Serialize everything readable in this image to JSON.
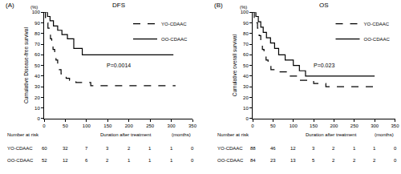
{
  "chart_data": [
    {
      "type": "line",
      "panel_label": "(A)",
      "title": "DFS",
      "ylabel": "Cumulative Disease-free survival",
      "y_unit": "(%)",
      "xlim": [
        0,
        350
      ],
      "xticks": [
        0,
        50,
        100,
        150,
        200,
        250,
        300,
        350
      ],
      "ylim": [
        0,
        100
      ],
      "yticks": [
        0,
        10,
        20,
        30,
        40,
        50,
        60,
        70,
        80,
        90,
        100
      ],
      "grid": false,
      "legend": "upper right",
      "annotation": "P=0.0014",
      "series": [
        {
          "name": "YO-CDAAC",
          "color": "#000000",
          "line_style": "dashed",
          "x": [
            0,
            3,
            6,
            9,
            12,
            15,
            18,
            21,
            25,
            28,
            32,
            36,
            40,
            45,
            52,
            60,
            75,
            110,
            310
          ],
          "values": [
            100,
            95,
            90,
            85,
            80,
            75,
            70,
            65,
            60,
            55,
            50,
            46,
            42,
            40,
            38,
            36,
            34,
            31,
            31
          ]
        },
        {
          "name": "OO-CDAAC",
          "color": "#000000",
          "line_style": "solid",
          "x": [
            0,
            8,
            14,
            22,
            32,
            42,
            55,
            70,
            90,
            305
          ],
          "values": [
            100,
            96,
            92,
            87,
            83,
            79,
            75,
            66,
            60,
            60
          ]
        }
      ],
      "risk_table": {
        "title": "Number at risk",
        "xlabel": "Duration after treatment",
        "x_unit": "(months)",
        "x": [
          0,
          50,
          100,
          150,
          200,
          250,
          300,
          350
        ],
        "rows": [
          {
            "name": "YO-CDAAC",
            "values": [
              60,
              32,
              7,
              3,
              2,
              1,
              1,
              0
            ]
          },
          {
            "name": "OO-CDAAC",
            "values": [
              52,
              12,
              6,
              2,
              1,
              1,
              1,
              0
            ]
          }
        ]
      }
    },
    {
      "type": "line",
      "panel_label": "(B)",
      "title": "OS",
      "ylabel": "Cumulative overall survival",
      "y_unit": "(%)",
      "xlim": [
        0,
        350
      ],
      "xticks": [
        0,
        50,
        100,
        150,
        200,
        250,
        300,
        350
      ],
      "ylim": [
        0,
        100
      ],
      "yticks": [
        0,
        10,
        20,
        30,
        40,
        50,
        60,
        70,
        80,
        90,
        100
      ],
      "grid": false,
      "legend": "upper right",
      "annotation": "P=0.023",
      "series": [
        {
          "name": "YO-CDAAC",
          "color": "#000000",
          "line_style": "dashed",
          "x": [
            0,
            4,
            8,
            12,
            16,
            20,
            24,
            28,
            33,
            38,
            45,
            60,
            90,
            110,
            150,
            180,
            310
          ],
          "values": [
            100,
            95,
            90,
            85,
            78,
            72,
            65,
            60,
            55,
            50,
            46,
            44,
            40,
            36,
            33,
            30,
            30
          ]
        },
        {
          "name": "OO-CDAAC",
          "color": "#000000",
          "line_style": "solid",
          "x": [
            0,
            8,
            14,
            20,
            26,
            34,
            44,
            54,
            64,
            80,
            100,
            115,
            130,
            300
          ],
          "values": [
            100,
            96,
            91,
            86,
            81,
            76,
            71,
            66,
            60,
            55,
            50,
            45,
            40,
            40
          ]
        }
      ],
      "risk_table": {
        "title": "Number at risk",
        "xlabel": "Duration after treatment",
        "x_unit": "(months)",
        "x": [
          0,
          50,
          100,
          150,
          200,
          250,
          300,
          350
        ],
        "rows": [
          {
            "name": "YO-CDAAC",
            "values": [
              88,
              46,
              12,
              3,
              2,
              1,
              1,
              0
            ]
          },
          {
            "name": "OO-CDAAC",
            "values": [
              84,
              23,
              13,
              5,
              2,
              2,
              2,
              0
            ]
          }
        ]
      }
    }
  ]
}
